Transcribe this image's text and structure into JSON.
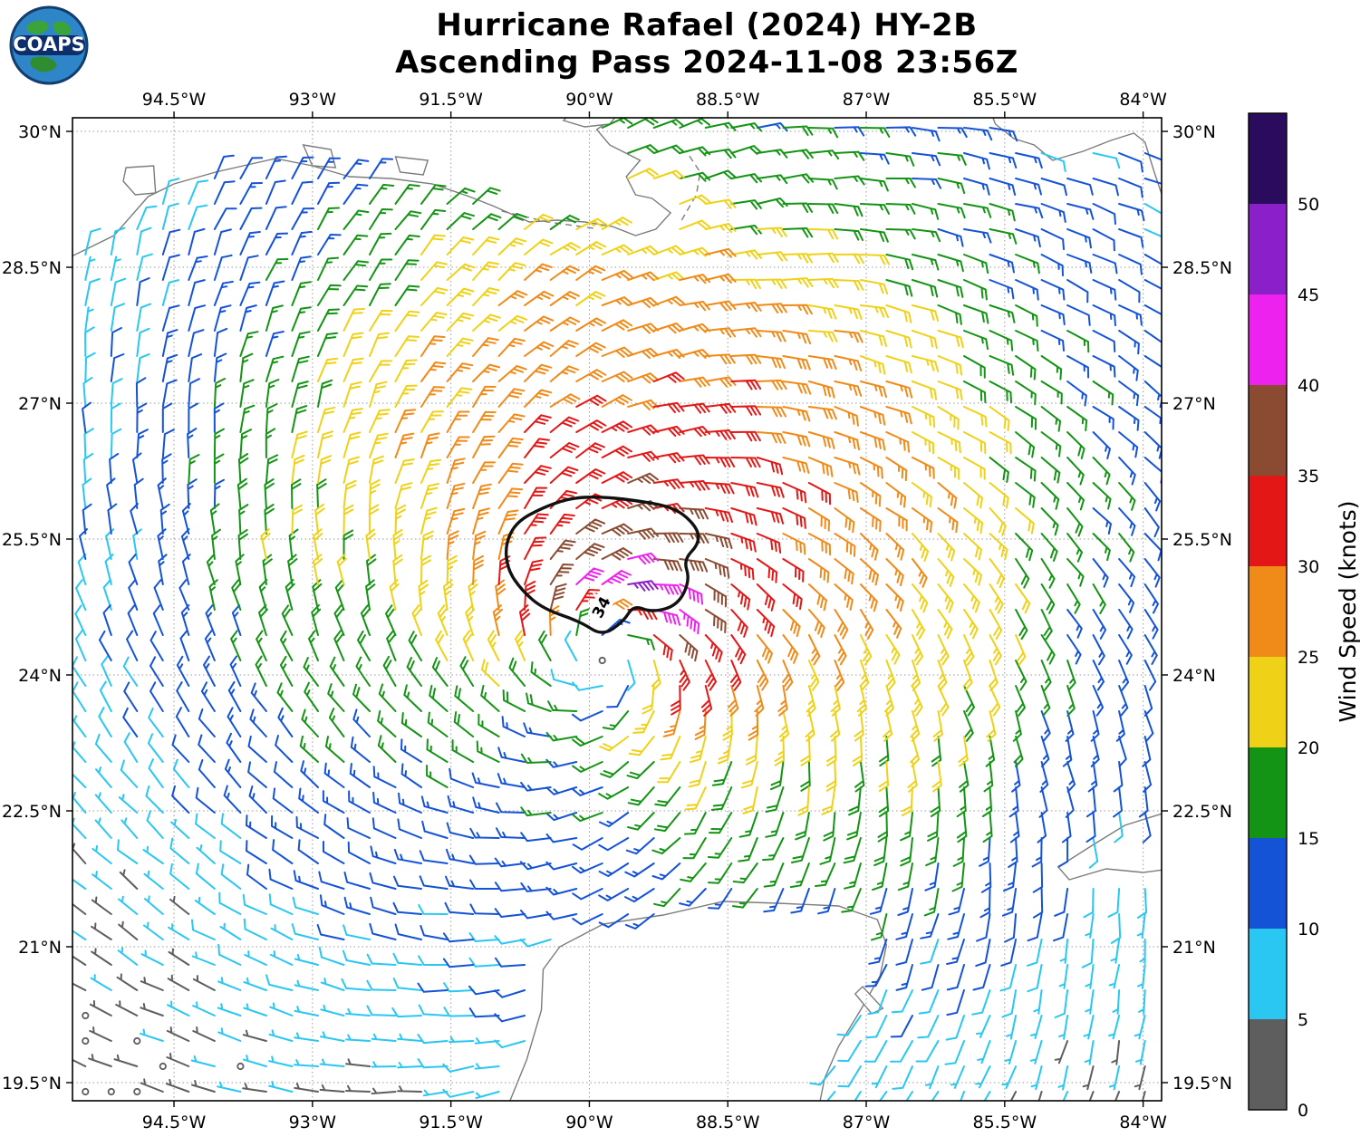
{
  "header": {
    "title_line1": "Hurricane Rafael (2024) HY-2B",
    "title_line2": "Ascending Pass 2024-11-08 23:56Z"
  },
  "logo": {
    "text": "COAPS"
  },
  "chart_data": {
    "type": "wind_barb_map",
    "title": "Hurricane Rafael (2024) HY-2B",
    "subtitle": "Ascending Pass 2024-11-08 23:56Z",
    "x_tick_labels": [
      "94.5°W",
      "93°W",
      "91.5°W",
      "90°W",
      "88.5°W",
      "87°W",
      "85.5°W",
      "84°W"
    ],
    "x_tick_values": [
      -94.5,
      -93,
      -91.5,
      -90,
      -88.5,
      -87,
      -85.5,
      -84
    ],
    "y_tick_labels": [
      "30°N",
      "28.5°N",
      "27°N",
      "25.5°N",
      "24°N",
      "22.5°N",
      "21°N",
      "19.5°N"
    ],
    "y_tick_values": [
      30,
      28.5,
      27,
      25.5,
      24,
      22.5,
      21,
      19.5
    ],
    "lon_range": [
      -95.6,
      -83.8
    ],
    "lat_range": [
      19.3,
      30.15
    ],
    "grid_on": true,
    "colorbar": {
      "title": "Wind Speed (knots)",
      "tick_labels": [
        "0",
        "5",
        "10",
        "15",
        "20",
        "25",
        "30",
        "35",
        "40",
        "45",
        "50"
      ],
      "tick_values": [
        0,
        5,
        10,
        15,
        20,
        25,
        30,
        35,
        40,
        45,
        50
      ],
      "vmin": 0,
      "vmax": 55,
      "colors": [
        "#5e5e5e",
        "#29c7f2",
        "#1453d6",
        "#149414",
        "#efd218",
        "#f08a18",
        "#e41717",
        "#8a4b32",
        "#ee22ee",
        "#8b1fc8",
        "#2b0b5e"
      ]
    },
    "contour": {
      "label": "34",
      "value_kt": 34,
      "label_pos": [
        -89.82,
        24.72
      ],
      "label_rotation": -62,
      "points": [
        [
          -89.91,
          25.97
        ],
        [
          -89.52,
          25.93
        ],
        [
          -89.07,
          25.85
        ],
        [
          -88.83,
          25.63
        ],
        [
          -88.81,
          25.45
        ],
        [
          -88.98,
          25.27
        ],
        [
          -88.91,
          25.05
        ],
        [
          -89.04,
          24.77
        ],
        [
          -89.32,
          24.69
        ],
        [
          -89.52,
          24.77
        ],
        [
          -89.63,
          24.59
        ],
        [
          -89.86,
          24.43
        ],
        [
          -90.1,
          24.59
        ],
        [
          -90.5,
          24.73
        ],
        [
          -90.73,
          24.93
        ],
        [
          -90.89,
          25.17
        ],
        [
          -90.91,
          25.45
        ],
        [
          -90.79,
          25.69
        ],
        [
          -90.5,
          25.85
        ],
        [
          -90.21,
          25.95
        ]
      ]
    },
    "wind_field_model": {
      "center_lon": -89.8,
      "center_lat": 24.2,
      "vmax_kt": 32,
      "rmax_deg": 0.8,
      "outer_exponent": 0.33,
      "asym_amplitude": 0.45,
      "asym_direction_deg": 20,
      "inflow_deg": 25,
      "far_decay_start_deg": 4,
      "far_decay_scale_deg": 3.5,
      "far_decay_asym": 0.35,
      "speed_cap_kt": 45.4,
      "calm_threshold_kt": 3
    },
    "barb_convention": {
      "half_kt": 5,
      "full_kt": 10,
      "pennant_kt": 50
    },
    "grid_spacing_deg": 0.28,
    "coastlines": [
      {
        "name": "northern-gulf-coast",
        "closed": true,
        "mask": true,
        "dashed": false,
        "points": [
          [
            -95.75,
            30.4
          ],
          [
            -95.75,
            28.55
          ],
          [
            -95.15,
            28.85
          ],
          [
            -94.78,
            29.28
          ],
          [
            -94.5,
            29.42
          ],
          [
            -94.05,
            29.55
          ],
          [
            -93.75,
            29.62
          ],
          [
            -93.4,
            29.7
          ],
          [
            -93.0,
            29.62
          ],
          [
            -92.6,
            29.5
          ],
          [
            -92.15,
            29.48
          ],
          [
            -91.7,
            29.42
          ],
          [
            -91.3,
            29.28
          ],
          [
            -91.05,
            29.18
          ],
          [
            -90.65,
            29.0
          ],
          [
            -90.35,
            29.02
          ],
          [
            -90.05,
            29.0
          ],
          [
            -89.75,
            28.95
          ],
          [
            -89.5,
            28.85
          ],
          [
            -89.28,
            28.92
          ],
          [
            -89.12,
            29.1
          ],
          [
            -89.32,
            29.26
          ],
          [
            -89.5,
            29.3
          ],
          [
            -89.6,
            29.5
          ],
          [
            -89.45,
            29.68
          ],
          [
            -89.78,
            29.85
          ],
          [
            -89.92,
            30.02
          ],
          [
            -89.7,
            30.18
          ],
          [
            -89.72,
            30.4
          ]
        ]
      },
      {
        "name": "florida-big-bend",
        "closed": true,
        "mask": true,
        "dashed": false,
        "points": [
          [
            -85.72,
            30.4
          ],
          [
            -85.6,
            30.08
          ],
          [
            -85.4,
            29.92
          ],
          [
            -85.18,
            29.85
          ],
          [
            -84.98,
            29.68
          ],
          [
            -84.65,
            29.78
          ],
          [
            -84.35,
            29.9
          ],
          [
            -84.1,
            29.98
          ],
          [
            -83.98,
            29.88
          ],
          [
            -83.88,
            29.55
          ],
          [
            -83.78,
            29.25
          ],
          [
            -83.6,
            28.8
          ],
          [
            -83.6,
            30.4
          ]
        ]
      },
      {
        "name": "western-cuba",
        "closed": true,
        "mask": true,
        "dashed": false,
        "points": [
          [
            -83.7,
            22.5
          ],
          [
            -84.2,
            22.34
          ],
          [
            -84.55,
            22.12
          ],
          [
            -84.92,
            21.88
          ],
          [
            -84.8,
            21.74
          ],
          [
            -84.4,
            21.86
          ],
          [
            -84.0,
            21.82
          ],
          [
            -83.7,
            21.86
          ]
        ]
      },
      {
        "name": "yucatan-peninsula",
        "closed": true,
        "mask": true,
        "dashed": false,
        "points": [
          [
            -90.9,
            19.2
          ],
          [
            -90.68,
            19.75
          ],
          [
            -90.52,
            20.3
          ],
          [
            -90.5,
            20.75
          ],
          [
            -90.32,
            21.0
          ],
          [
            -89.85,
            21.25
          ],
          [
            -89.2,
            21.35
          ],
          [
            -88.55,
            21.5
          ],
          [
            -87.95,
            21.48
          ],
          [
            -87.3,
            21.45
          ],
          [
            -86.88,
            21.3
          ],
          [
            -86.78,
            21.02
          ],
          [
            -86.85,
            20.68
          ],
          [
            -87.05,
            20.32
          ],
          [
            -87.3,
            19.9
          ],
          [
            -87.45,
            19.55
          ],
          [
            -87.52,
            19.2
          ]
        ]
      },
      {
        "name": "cozumel-island",
        "closed": true,
        "mask": true,
        "dashed": false,
        "points": [
          [
            -87.04,
            20.56
          ],
          [
            -86.82,
            20.32
          ],
          [
            -86.94,
            20.26
          ],
          [
            -87.12,
            20.48
          ]
        ]
      },
      {
        "name": "lake-pontchartrain",
        "closed": true,
        "mask": false,
        "dashed": false,
        "points": [
          [
            -90.28,
            30.12
          ],
          [
            -90.05,
            30.05
          ],
          [
            -89.78,
            30.08
          ],
          [
            -89.7,
            30.18
          ],
          [
            -89.85,
            30.28
          ],
          [
            -90.15,
            30.25
          ]
        ]
      },
      {
        "name": "galveston-bay",
        "closed": true,
        "mask": false,
        "dashed": false,
        "points": [
          [
            -95.02,
            29.6
          ],
          [
            -94.72,
            29.62
          ],
          [
            -94.7,
            29.32
          ],
          [
            -94.92,
            29.3
          ],
          [
            -95.05,
            29.45
          ]
        ]
      },
      {
        "name": "calcasieu-lake",
        "closed": true,
        "mask": false,
        "dashed": false,
        "points": [
          [
            -93.1,
            29.85
          ],
          [
            -92.8,
            29.8
          ],
          [
            -92.75,
            29.6
          ],
          [
            -93.0,
            29.62
          ]
        ]
      },
      {
        "name": "vermilion-bay",
        "closed": true,
        "mask": false,
        "dashed": false,
        "points": [
          [
            -92.1,
            29.72
          ],
          [
            -91.75,
            29.68
          ],
          [
            -91.8,
            29.52
          ],
          [
            -92.05,
            29.55
          ]
        ]
      },
      {
        "name": "chandeleur-islands",
        "closed": false,
        "mask": false,
        "dashed": true,
        "points": [
          [
            -89.0,
            29.02
          ],
          [
            -88.84,
            29.3
          ],
          [
            -88.8,
            29.55
          ],
          [
            -88.95,
            29.78
          ]
        ]
      },
      {
        "name": "louisiana-shelf-line",
        "closed": false,
        "mask": false,
        "dashed": true,
        "points": [
          [
            -90.95,
            29.12
          ],
          [
            -90.45,
            29.0
          ],
          [
            -89.95,
            28.93
          ]
        ]
      }
    ]
  }
}
